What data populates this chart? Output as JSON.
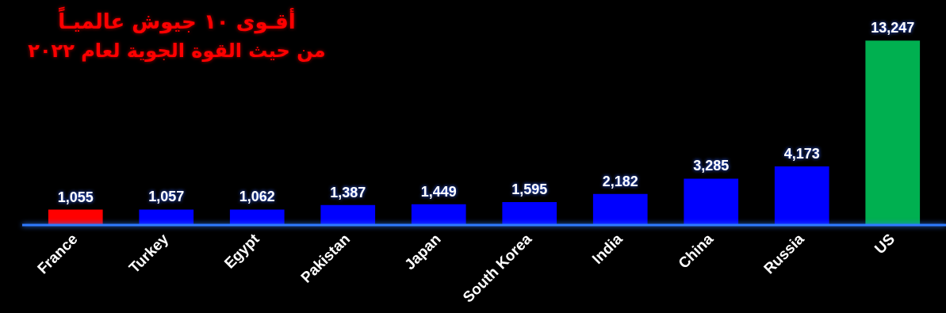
{
  "chart_data": {
    "type": "bar",
    "title": "أقـوى ١٠ جيوش عالميـاً",
    "subtitle": "من حيث القوة الجوية لعام ٢٠٢٢",
    "categories": [
      "France",
      "Turkey",
      "Egypt",
      "Pakistan",
      "Japan",
      "South Korea",
      "India",
      "China",
      "Russia",
      "US"
    ],
    "values": [
      1055,
      1057,
      1062,
      1387,
      1449,
      1595,
      2182,
      3285,
      4173,
      13247
    ],
    "colors": [
      "#ff0000",
      "#0000ff",
      "#0000ff",
      "#0000ff",
      "#0000ff",
      "#0000ff",
      "#0000ff",
      "#0000ff",
      "#0000ff",
      "#00b050"
    ],
    "value_labels": [
      "1,055",
      "1,057",
      "1,062",
      "1,387",
      "1,449",
      "1,595",
      "2,182",
      "3,285",
      "4,173",
      "13,247"
    ],
    "tick_labels": "x"
  }
}
